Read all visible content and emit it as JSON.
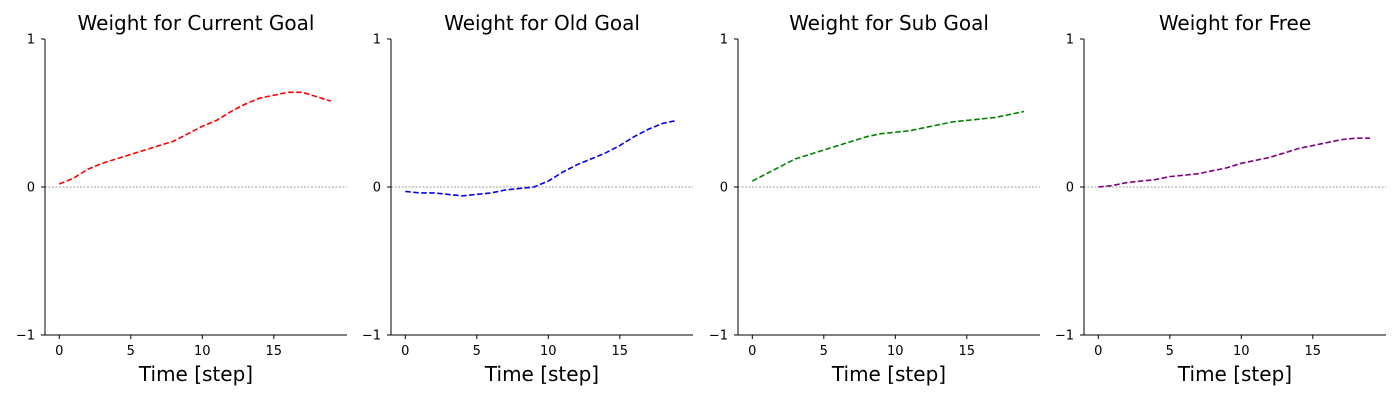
{
  "figure": {
    "background": "#ffffff",
    "zero_line_color": "#808080"
  },
  "chart_data": [
    {
      "type": "line",
      "title": "Weight for Current Goal",
      "xlabel": "Time [step]",
      "ylabel": "",
      "xlim": [
        -1,
        20
      ],
      "ylim": [
        -1,
        1
      ],
      "xticks": [
        "0",
        "5",
        "10",
        "15"
      ],
      "yticks": [
        "1",
        "0",
        "−1"
      ],
      "grid": false,
      "zero_line": true,
      "series": [
        {
          "color": "#ff0000",
          "style": "dashed",
          "x": [
            0,
            1,
            2,
            3,
            4,
            5,
            6,
            7,
            8,
            9,
            10,
            11,
            12,
            13,
            14,
            15,
            16,
            17,
            18,
            19
          ],
          "y": [
            0.02,
            0.06,
            0.12,
            0.16,
            0.19,
            0.22,
            0.25,
            0.28,
            0.31,
            0.36,
            0.41,
            0.45,
            0.51,
            0.56,
            0.6,
            0.62,
            0.64,
            0.64,
            0.61,
            0.58
          ]
        }
      ]
    },
    {
      "type": "line",
      "title": "Weight for Old Goal",
      "xlabel": "Time [step]",
      "ylabel": "",
      "xlim": [
        -1,
        20
      ],
      "ylim": [
        -1,
        1
      ],
      "xticks": [
        "0",
        "5",
        "10",
        "15"
      ],
      "yticks": [
        "1",
        "0",
        "−1"
      ],
      "grid": false,
      "zero_line": true,
      "series": [
        {
          "color": "#0000ee",
          "style": "dashed",
          "x": [
            0,
            1,
            2,
            3,
            4,
            5,
            6,
            7,
            8,
            9,
            10,
            11,
            12,
            13,
            14,
            15,
            16,
            17,
            18,
            19
          ],
          "y": [
            -0.03,
            -0.04,
            -0.04,
            -0.05,
            -0.06,
            -0.05,
            -0.04,
            -0.02,
            -0.01,
            0.0,
            0.04,
            0.1,
            0.15,
            0.19,
            0.23,
            0.28,
            0.34,
            0.39,
            0.43,
            0.45
          ]
        }
      ]
    },
    {
      "type": "line",
      "title": "Weight for Sub Goal",
      "xlabel": "Time [step]",
      "ylabel": "",
      "xlim": [
        -1,
        20
      ],
      "ylim": [
        -1,
        1
      ],
      "xticks": [
        "0",
        "5",
        "10",
        "15"
      ],
      "yticks": [
        "1",
        "0",
        "−1"
      ],
      "grid": false,
      "zero_line": true,
      "series": [
        {
          "color": "#008000",
          "style": "dashed",
          "x": [
            0,
            1,
            2,
            3,
            4,
            5,
            6,
            7,
            8,
            9,
            10,
            11,
            12,
            13,
            14,
            15,
            16,
            17,
            18,
            19
          ],
          "y": [
            0.04,
            0.09,
            0.14,
            0.19,
            0.22,
            0.25,
            0.28,
            0.31,
            0.34,
            0.36,
            0.37,
            0.38,
            0.4,
            0.42,
            0.44,
            0.45,
            0.46,
            0.47,
            0.49,
            0.51
          ]
        }
      ]
    },
    {
      "type": "line",
      "title": "Weight for Free",
      "xlabel": "Time [step]",
      "ylabel": "",
      "xlim": [
        -1,
        20
      ],
      "ylim": [
        -1,
        1
      ],
      "xticks": [
        "0",
        "5",
        "10",
        "15"
      ],
      "yticks": [
        "1",
        "0",
        "−1"
      ],
      "grid": false,
      "zero_line": true,
      "series": [
        {
          "color": "#800080",
          "style": "dashed",
          "x": [
            0,
            1,
            2,
            3,
            4,
            5,
            6,
            7,
            8,
            9,
            10,
            11,
            12,
            13,
            14,
            15,
            16,
            17,
            18,
            19
          ],
          "y": [
            0.0,
            0.01,
            0.03,
            0.04,
            0.05,
            0.07,
            0.08,
            0.09,
            0.11,
            0.13,
            0.16,
            0.18,
            0.2,
            0.23,
            0.26,
            0.28,
            0.3,
            0.32,
            0.33,
            0.33
          ]
        }
      ]
    }
  ]
}
